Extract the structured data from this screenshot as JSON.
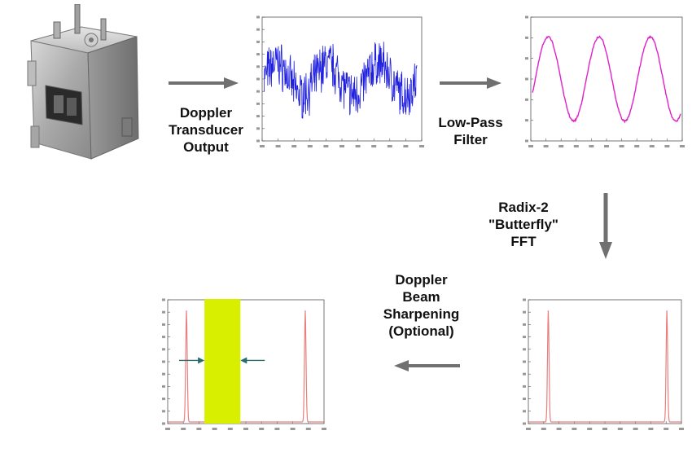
{
  "labels": {
    "doppler_output": [
      "Doppler",
      "Transducer",
      "Output"
    ],
    "low_pass": [
      "Low-Pass",
      "Filter"
    ],
    "fft": [
      "Radix-2",
      "\"Butterfly\"",
      "FFT"
    ],
    "sharpening": [
      "Doppler",
      "Beam",
      "Sharpening",
      "(Optional)"
    ]
  },
  "colors": {
    "arrow": "#707070",
    "noisy_signal": "#2020e0",
    "filtered_signal": "#e020c8",
    "spectrum": "#e88080",
    "highlight": "#d8f000",
    "marker_arrow": "#2a6a6a"
  },
  "icons": {
    "transducer": "doppler-transducer-photo"
  }
}
